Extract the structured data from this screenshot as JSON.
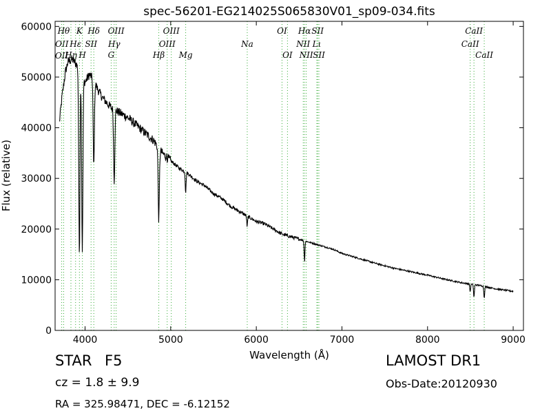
{
  "chart_data": {
    "type": "line",
    "title": "spec-56201-EG214025S065830V01_sp09-034.fits",
    "xlabel": "Wavelength (Å)",
    "ylabel": "Flux (relative)",
    "xlim": [
      3650,
      9120
    ],
    "ylim": [
      0,
      61000
    ],
    "xticks": [
      4000,
      5000,
      6000,
      7000,
      8000,
      9000
    ],
    "yticks": [
      0,
      10000,
      20000,
      30000,
      40000,
      50000,
      60000
    ],
    "grid": false,
    "series": [
      {
        "x": [
          3700,
          3730,
          3770,
          3800,
          3850,
          3900,
          3950,
          4000,
          4050,
          4100,
          4150,
          4200,
          4250,
          4300,
          4350,
          4400,
          4450,
          4500,
          4600,
          4700,
          4800,
          4900,
          5000,
          5100,
          5200,
          5300,
          5400,
          5500,
          5600,
          5700,
          5800,
          5900,
          6000,
          6100,
          6200,
          6300,
          6400,
          6500,
          6600,
          6700,
          6800,
          6900,
          7000,
          7200,
          7400,
          7600,
          7800,
          8000,
          8200,
          8400,
          8600,
          8800,
          9000
        ],
        "y": [
          41000,
          46000,
          51000,
          53000,
          53500,
          52500,
          50500,
          49000,
          50500,
          49500,
          47500,
          46000,
          45000,
          44000,
          43500,
          43000,
          42500,
          42000,
          40500,
          39000,
          37500,
          35000,
          33500,
          32000,
          31000,
          29500,
          28500,
          27000,
          26000,
          24500,
          23500,
          22500,
          21500,
          21000,
          20000,
          19000,
          18500,
          18000,
          17500,
          17000,
          16500,
          16000,
          15200,
          14200,
          13200,
          12300,
          11600,
          10900,
          10100,
          9400,
          8900,
          8200,
          7700
        ]
      }
    ],
    "absorption_lines": [
      {
        "x": 3933,
        "depth": 36000
      },
      {
        "x": 3968,
        "depth": 34000
      },
      {
        "x": 4102,
        "depth": 17000
      },
      {
        "x": 4340,
        "depth": 14000
      },
      {
        "x": 4861,
        "depth": 14000
      },
      {
        "x": 5175,
        "depth": 4000
      },
      {
        "x": 5893,
        "depth": 2000
      },
      {
        "x": 6563,
        "depth": 4000
      },
      {
        "x": 8498,
        "depth": 1500
      },
      {
        "x": 8542,
        "depth": 2500
      },
      {
        "x": 8662,
        "depth": 2200
      }
    ],
    "line_markers": [
      {
        "label": "OII",
        "x": 3727,
        "row": 4
      },
      {
        "label": "OII",
        "x": 3729,
        "row": 2
      },
      {
        "label": "Hθ",
        "x": 3750,
        "row": 1
      },
      {
        "label": "Hη",
        "x": 3835,
        "row": 3
      },
      {
        "label": "K",
        "x": 3934,
        "row": 1
      },
      {
        "label": "Hε",
        "x": 3889,
        "row": 2
      },
      {
        "label": "SII",
        "x": 4070,
        "row": 2
      },
      {
        "label": "H",
        "x": 3969,
        "row": 3
      },
      {
        "label": "Hδ",
        "x": 4102,
        "row": 1
      },
      {
        "label": "OIII",
        "x": 4363,
        "row": 1
      },
      {
        "label": "Hγ",
        "x": 4340,
        "row": 2
      },
      {
        "label": "G",
        "x": 4305,
        "row": 3
      },
      {
        "label": "OIII",
        "x": 5007,
        "row": 1
      },
      {
        "label": "OIII",
        "x": 4959,
        "row": 2
      },
      {
        "label": "Hβ",
        "x": 4861,
        "row": 3
      },
      {
        "label": "Mg",
        "x": 5175,
        "row": 3
      },
      {
        "label": "Na",
        "x": 5894,
        "row": 2
      },
      {
        "label": "OI",
        "x": 6300,
        "row": 1
      },
      {
        "label": "OI",
        "x": 6364,
        "row": 3
      },
      {
        "label": "Hα",
        "x": 6563,
        "row": 1
      },
      {
        "label": "NII",
        "x": 6548,
        "row": 2
      },
      {
        "label": "NII",
        "x": 6583,
        "row": 3
      },
      {
        "label": "SII",
        "x": 6716,
        "row": 1
      },
      {
        "label": "Lι",
        "x": 6707,
        "row": 2
      },
      {
        "label": "SII",
        "x": 6731,
        "row": 3
      },
      {
        "label": "CaII",
        "x": 8542,
        "row": 1
      },
      {
        "label": "CaII",
        "x": 8498,
        "row": 2
      },
      {
        "label": "CaII",
        "x": 8662,
        "row": 3
      }
    ],
    "colors": {
      "spectrum": "#000000",
      "markers": "#33aa33",
      "axes": "#000000"
    }
  },
  "info": {
    "class": "STAR",
    "subclass": "F5",
    "redshift": "cz = 1.8 ± 9.9",
    "coordinates": "RA = 325.98471, DEC = -6.12152",
    "survey": "LAMOST DR1",
    "obs_date": "Obs-Date:20120930"
  }
}
